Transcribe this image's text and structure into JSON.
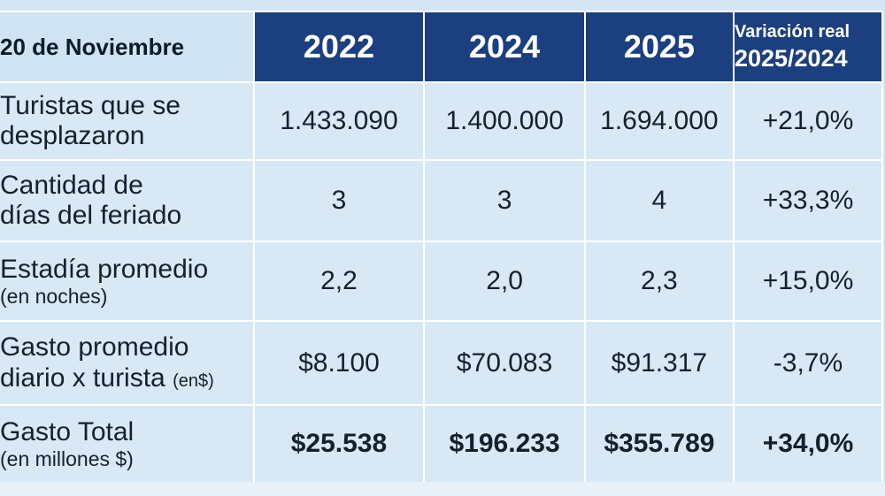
{
  "table": {
    "corner_label": "20 de Noviembre",
    "years": [
      "2022",
      "2024",
      "2025"
    ],
    "variation_header": {
      "line1": "Variación real",
      "line2": "2025/2024"
    },
    "rows": [
      {
        "label_line1": "Turistas que se",
        "label_line2": "desplazaron",
        "values": [
          "1.433.090",
          "1.400.000",
          "1.694.000"
        ],
        "variation": "+21,0%"
      },
      {
        "label_line1": "Cantidad de",
        "label_line2": "días del feriado",
        "values": [
          "3",
          "3",
          "4"
        ],
        "variation": "+33,3%"
      },
      {
        "label_line1": "Estadía promedio",
        "label_line2": "(en noches)",
        "values": [
          "2,2",
          "2,0",
          "2,3"
        ],
        "variation": "+15,0%"
      },
      {
        "label_line1": "Gasto promedio",
        "label_line2": "diario x turista",
        "label_unit": "(en$)",
        "values": [
          "$8.100",
          "$70.083",
          "$91.317"
        ],
        "variation": "-3,7%"
      },
      {
        "label_line1": "Gasto Total",
        "label_line2": "(en millones $)",
        "values": [
          "$25.538",
          "$196.233",
          "$355.789"
        ],
        "variation": "+34,0%"
      }
    ]
  },
  "colors": {
    "header_bg": "#1c3f80",
    "cell_bg": "#d8e8f4",
    "header_text": "#ffffff",
    "body_text": "#14202e"
  }
}
